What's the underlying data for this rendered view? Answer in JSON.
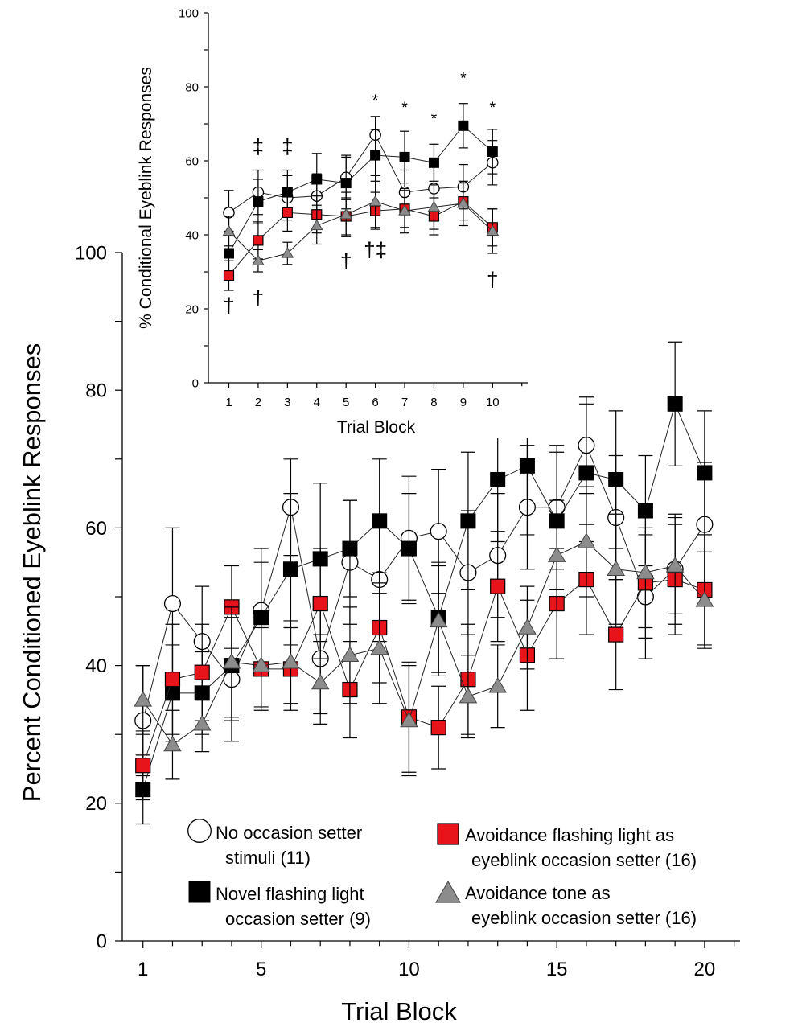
{
  "chart_data": [
    {
      "id": "main",
      "type": "line",
      "xlabel": "Trial Block",
      "ylabel": "Percent Conditioned Eyeblink Responses",
      "xlim": [
        0.3,
        21.2
      ],
      "ylim": [
        0,
        100
      ],
      "x_ticks": [
        1,
        5,
        10,
        15,
        20
      ],
      "y_ticks": [
        0,
        20,
        40,
        60,
        80,
        100
      ],
      "legend": [
        {
          "key": "none",
          "marker": "circle",
          "line1": "No  occasion setter",
          "line2": "stimuli (11)"
        },
        {
          "key": "novel",
          "marker": "square-black",
          "line1": "Novel flashing light",
          "line2": "occasion setter (9)"
        },
        {
          "key": "light",
          "marker": "square-red",
          "line1": "Avoidance flashing light as",
          "line2": "eyeblink  occasion setter  (16)"
        },
        {
          "key": "tone",
          "marker": "triangle",
          "line1": "Avoidance tone as",
          "line2": "eyeblink occasion setter (16)"
        }
      ],
      "series": [
        {
          "key": "none",
          "name": "No occasion setter stimuli (11)",
          "marker": "circle",
          "x": [
            1,
            2,
            3,
            4,
            5,
            6,
            7,
            8,
            9,
            10,
            11,
            12,
            13,
            14,
            15,
            16,
            17,
            18,
            19,
            20
          ],
          "y": [
            32,
            49,
            43.5,
            38,
            48,
            63,
            41,
            55,
            52.5,
            58.5,
            59.5,
            53.5,
            56,
            63,
            63,
            72,
            61.5,
            50,
            54,
            60.5
          ],
          "err": [
            8,
            11,
            8,
            9,
            9,
            7,
            8,
            9,
            9,
            9,
            9,
            9,
            9,
            9,
            9,
            7,
            9,
            9,
            8,
            9
          ]
        },
        {
          "key": "novel",
          "name": "Novel flashing light occasion setter (9)",
          "marker": "square-black",
          "x": [
            1,
            2,
            3,
            4,
            5,
            6,
            7,
            8,
            9,
            10,
            11,
            12,
            13,
            14,
            15,
            16,
            17,
            18,
            19,
            20
          ],
          "y": [
            22,
            36,
            36,
            40,
            47,
            54,
            55.5,
            57,
            61,
            57,
            47,
            61,
            67,
            69,
            61,
            68,
            67,
            62.5,
            78,
            68
          ],
          "err": [
            5,
            7,
            6,
            8,
            8,
            11,
            11,
            7,
            9,
            8,
            8,
            10,
            9,
            10,
            10,
            10,
            10,
            8,
            9,
            9
          ]
        },
        {
          "key": "light",
          "name": "Avoidance flashing light as eyeblink occasion setter (16)",
          "marker": "square-red",
          "x": [
            1,
            2,
            3,
            4,
            5,
            6,
            7,
            8,
            9,
            10,
            11,
            12,
            13,
            14,
            15,
            16,
            17,
            18,
            19,
            20
          ],
          "y": [
            25.5,
            38,
            39,
            48.5,
            39.5,
            39.5,
            49,
            36.5,
            45.5,
            32.5,
            31,
            38,
            51.5,
            41.5,
            49,
            52.5,
            44.5,
            52,
            52.5,
            51
          ],
          "err": [
            5,
            8,
            7,
            6,
            6,
            6,
            8,
            7,
            8,
            8,
            6,
            8,
            8,
            8,
            8,
            8,
            8,
            8,
            8,
            8
          ]
        },
        {
          "key": "tone",
          "name": "Avoidance tone as eyeblink occasion setter (16)",
          "marker": "triangle",
          "x": [
            1,
            2,
            3,
            4,
            5,
            6,
            7,
            8,
            9,
            10,
            11,
            12,
            13,
            14,
            15,
            16,
            17,
            18,
            19,
            20
          ],
          "y": [
            35,
            28.5,
            31.5,
            40.5,
            40,
            40.5,
            37.5,
            41.5,
            42.5,
            32,
            46.5,
            35.5,
            37,
            45.5,
            56,
            58,
            54,
            53.5,
            54.5,
            49.5
          ],
          "err": [
            5,
            5,
            4,
            8,
            6,
            6,
            6,
            7,
            8,
            8,
            8,
            6,
            6,
            6,
            8,
            8,
            8,
            8,
            7,
            7
          ]
        }
      ]
    },
    {
      "id": "inset",
      "type": "line",
      "xlabel": "Trial Block",
      "ylabel": "% Conditional Eyeblink Responses",
      "xlim": [
        0.3,
        11.2
      ],
      "ylim": [
        0,
        100
      ],
      "x_ticks": [
        1,
        2,
        3,
        4,
        5,
        6,
        7,
        8,
        9,
        10
      ],
      "y_ticks": [
        0,
        20,
        40,
        60,
        80,
        100
      ],
      "series": [
        {
          "key": "none",
          "marker": "circle",
          "x": [
            1,
            2,
            3,
            4,
            5,
            6,
            7,
            8,
            9,
            10
          ],
          "y": [
            46,
            51.5,
            50,
            50.5,
            55.5,
            67,
            51.5,
            52.5,
            53,
            59.5
          ],
          "err": [
            6,
            6,
            6,
            6,
            6,
            5,
            6,
            6,
            6,
            6
          ]
        },
        {
          "key": "novel",
          "marker": "square-black",
          "x": [
            1,
            2,
            3,
            4,
            5,
            6,
            7,
            8,
            9,
            10
          ],
          "y": [
            35,
            49,
            51.5,
            55,
            54,
            61.5,
            61,
            59.5,
            69.5,
            62.5
          ],
          "err": [
            6,
            6,
            6,
            7,
            7,
            7,
            7,
            5,
            6,
            6
          ]
        },
        {
          "key": "light",
          "marker": "square-red",
          "x": [
            1,
            2,
            3,
            4,
            5,
            6,
            7,
            8,
            9,
            10
          ],
          "y": [
            29,
            38.5,
            46,
            45.5,
            45,
            46.5,
            47,
            45,
            49,
            42
          ],
          "err": [
            4,
            5,
            5,
            5,
            5,
            5,
            5,
            5,
            5,
            5
          ]
        },
        {
          "key": "tone",
          "marker": "triangle",
          "x": [
            1,
            2,
            3,
            4,
            5,
            6,
            7,
            8,
            9,
            10
          ],
          "y": [
            41,
            33,
            35,
            42.5,
            45.5,
            49,
            46.5,
            47.5,
            48.5,
            41
          ],
          "err": [
            4,
            3,
            3,
            5,
            6,
            7,
            6,
            6,
            6,
            6
          ]
        }
      ],
      "annotations": [
        {
          "x": 1,
          "y": 19,
          "text": "†"
        },
        {
          "x": 2,
          "y": 21,
          "text": "†"
        },
        {
          "x": 2,
          "y": 62,
          "text": "‡"
        },
        {
          "x": 3,
          "y": 62,
          "text": "‡"
        },
        {
          "x": 5,
          "y": 31,
          "text": "†"
        },
        {
          "x": 6,
          "y": 34,
          "text": "†‡"
        },
        {
          "x": 6,
          "y": 75,
          "text": "*"
        },
        {
          "x": 7,
          "y": 73,
          "text": "*"
        },
        {
          "x": 8,
          "y": 70,
          "text": "*"
        },
        {
          "x": 9,
          "y": 81,
          "text": "*"
        },
        {
          "x": 10,
          "y": 73,
          "text": "*"
        },
        {
          "x": 10,
          "y": 26,
          "text": "†"
        }
      ]
    }
  ]
}
